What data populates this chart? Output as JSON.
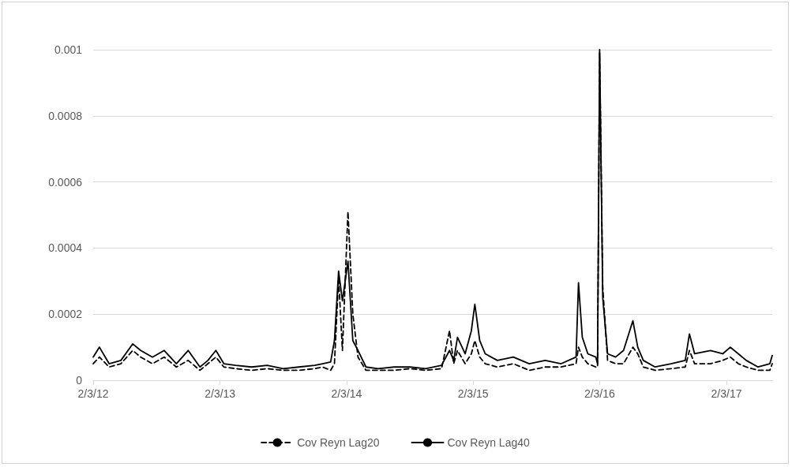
{
  "chart_data": {
    "type": "line",
    "x": [
      "2012-02-03",
      "2012-02-21",
      "2012-03-20",
      "2012-04-23",
      "2012-05-27",
      "2012-06-19",
      "2012-07-23",
      "2012-08-26",
      "2012-09-30",
      "2012-11-03",
      "2012-12-07",
      "2012-12-30",
      "2013-01-22",
      "2013-02-14",
      "2013-03-20",
      "2013-05-05",
      "2013-06-19",
      "2013-08-04",
      "2013-09-18",
      "2013-11-03",
      "2013-11-26",
      "2013-12-19",
      "2013-12-30",
      "2014-01-11",
      "2014-01-22",
      "2014-02-07",
      "2014-02-21",
      "2014-03-08",
      "2014-03-31",
      "2014-05-05",
      "2014-06-20",
      "2014-08-05",
      "2014-09-19",
      "2014-11-04",
      "2014-11-27",
      "2014-12-09",
      "2014-12-20",
      "2015-01-11",
      "2015-01-29",
      "2015-02-08",
      "2015-02-22",
      "2015-03-10",
      "2015-04-14",
      "2015-05-30",
      "2015-07-15",
      "2015-08-30",
      "2015-10-15",
      "2015-11-27",
      "2015-12-04",
      "2015-12-15",
      "2015-12-31",
      "2016-01-23",
      "2016-01-28",
      "2016-02-03",
      "2016-02-12",
      "2016-02-26",
      "2016-03-20",
      "2016-04-12",
      "2016-05-09",
      "2016-05-23",
      "2016-06-08",
      "2016-07-12",
      "2016-08-27",
      "2016-10-07",
      "2016-10-19",
      "2016-11-03",
      "2016-12-19",
      "2017-01-23",
      "2017-02-14",
      "2017-03-09",
      "2017-04-01",
      "2017-05-05",
      "2017-06-08",
      "2017-06-15"
    ],
    "series": [
      {
        "name": "Cov Reyn Lag20",
        "color": "#000000",
        "line_style": "dashed",
        "values": [
          5e-05,
          7e-05,
          4e-05,
          5e-05,
          9e-05,
          7e-05,
          5e-05,
          7e-05,
          4e-05,
          6e-05,
          3e-05,
          5e-05,
          7e-05,
          4e-05,
          3.5e-05,
          3e-05,
          3.5e-05,
          3e-05,
          3e-05,
          3.5e-05,
          4e-05,
          3e-05,
          5e-05,
          0.00031,
          9e-05,
          0.00051,
          0.0002,
          7e-05,
          3e-05,
          3e-05,
          3e-05,
          3.5e-05,
          3e-05,
          3.5e-05,
          0.00015,
          5e-05,
          9e-05,
          5e-05,
          8e-05,
          0.00012,
          7e-05,
          5e-05,
          4e-05,
          5e-05,
          3e-05,
          4e-05,
          4e-05,
          5e-05,
          0.0001,
          7e-05,
          5e-05,
          4e-05,
          4e-05,
          0.00099,
          0.00028,
          6e-05,
          5e-05,
          5e-05,
          0.0001,
          8e-05,
          4e-05,
          3e-05,
          3.5e-05,
          4e-05,
          9e-05,
          5e-05,
          5e-05,
          6e-05,
          7e-05,
          5e-05,
          4e-05,
          3e-05,
          3e-05,
          5e-05
        ]
      },
      {
        "name": "Cov Reyn Lag40",
        "color": "#000000",
        "line_style": "solid",
        "values": [
          7e-05,
          0.0001,
          5e-05,
          6e-05,
          0.00011,
          9e-05,
          7e-05,
          9e-05,
          5e-05,
          9e-05,
          4e-05,
          6e-05,
          9e-05,
          5e-05,
          4.5e-05,
          4e-05,
          4.5e-05,
          3.5e-05,
          4e-05,
          4.5e-05,
          5e-05,
          5.5e-05,
          0.00012,
          0.00033,
          0.00024,
          0.00036,
          0.00012,
          9e-05,
          4e-05,
          3.5e-05,
          4e-05,
          4e-05,
          3.5e-05,
          4.5e-05,
          9e-05,
          6e-05,
          0.00013,
          8e-05,
          0.00015,
          0.00023,
          0.00012,
          8e-05,
          6e-05,
          7e-05,
          5e-05,
          6e-05,
          5e-05,
          7e-05,
          0.000295,
          0.00013,
          8e-05,
          7e-05,
          5e-05,
          0.001,
          0.00025,
          8e-05,
          7e-05,
          9e-05,
          0.00018,
          0.0001,
          6e-05,
          4e-05,
          5e-05,
          6e-05,
          0.00014,
          8e-05,
          9e-05,
          8e-05,
          0.0001,
          8e-05,
          6e-05,
          4e-05,
          5e-05,
          7.5e-05
        ]
      }
    ],
    "xlim": [
      "2012-02-03",
      "2017-06-15"
    ],
    "xticks": [
      {
        "value": "2012-02-03",
        "label": "2/3/12"
      },
      {
        "value": "2013-02-03",
        "label": "2/3/13"
      },
      {
        "value": "2014-02-03",
        "label": "2/3/14"
      },
      {
        "value": "2015-02-03",
        "label": "2/3/15"
      },
      {
        "value": "2016-02-03",
        "label": "2/3/16"
      },
      {
        "value": "2017-02-03",
        "label": "2/3/17"
      }
    ],
    "ylim": [
      0,
      0.001
    ],
    "yticks": [
      0,
      0.0002,
      0.0004,
      0.0006,
      0.0008,
      0.001
    ],
    "grid": "y",
    "legend": "bottom",
    "marker": "none"
  }
}
